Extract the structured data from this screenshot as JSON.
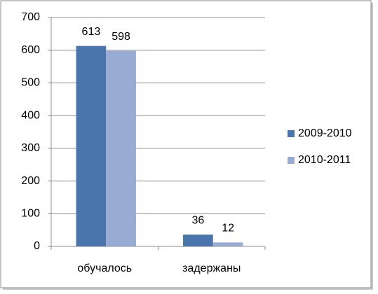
{
  "chart_data": {
    "type": "bar",
    "categories": [
      "обучалось",
      "задержаны"
    ],
    "series": [
      {
        "name": "2009-2010",
        "color": "#4a74ac",
        "values": [
          613,
          36
        ]
      },
      {
        "name": "2010-2011",
        "color": "#98abd3",
        "values": [
          598,
          12
        ]
      }
    ],
    "ylim": [
      0,
      700
    ],
    "yticks": [
      0,
      100,
      200,
      300,
      400,
      500,
      600,
      700
    ],
    "grid": true,
    "legend": "right",
    "data_labels": true
  }
}
